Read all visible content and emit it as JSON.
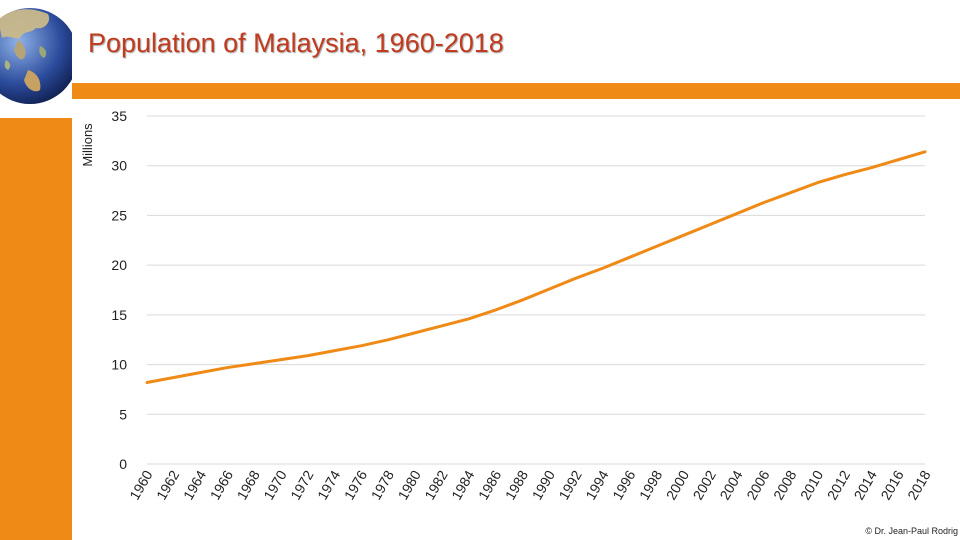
{
  "chart_data": {
    "type": "line",
    "title": "Population of Malaysia, 1960-2018",
    "ylabel": "Millions",
    "xlabel": "",
    "ylim": [
      0,
      35
    ],
    "yticks": [
      "0",
      "5",
      "10",
      "15",
      "20",
      "25",
      "30",
      "35"
    ],
    "xlim": [
      1960,
      2018
    ],
    "xticks": [
      "1960",
      "1962",
      "1964",
      "1966",
      "1968",
      "1970",
      "1972",
      "1974",
      "1976",
      "1978",
      "1980",
      "1982",
      "1984",
      "1986",
      "1988",
      "1990",
      "1992",
      "1994",
      "1996",
      "1998",
      "2000",
      "2002",
      "2004",
      "2006",
      "2008",
      "2010",
      "2012",
      "2014",
      "2016",
      "2018"
    ],
    "grid": true,
    "color": "#ef8a17",
    "series": [
      {
        "x": [
          1960,
          1962,
          1964,
          1966,
          1968,
          1970,
          1972,
          1974,
          1976,
          1978,
          1980,
          1982,
          1984,
          1986,
          1988,
          1990,
          1992,
          1994,
          1996,
          1998,
          2000,
          2002,
          2004,
          2006,
          2008,
          2010,
          2012,
          2014,
          2016,
          2018
        ],
        "values": [
          8.2,
          8.7,
          9.2,
          9.7,
          10.1,
          10.5,
          10.9,
          11.4,
          11.9,
          12.5,
          13.2,
          13.9,
          14.6,
          15.5,
          16.5,
          17.6,
          18.7,
          19.7,
          20.8,
          21.9,
          23.0,
          24.1,
          25.2,
          26.3,
          27.3,
          28.3,
          29.1,
          29.8,
          30.6,
          31.4
        ]
      }
    ]
  },
  "footer": {
    "credit": "© Dr. Jean-Paul Rodrig"
  }
}
